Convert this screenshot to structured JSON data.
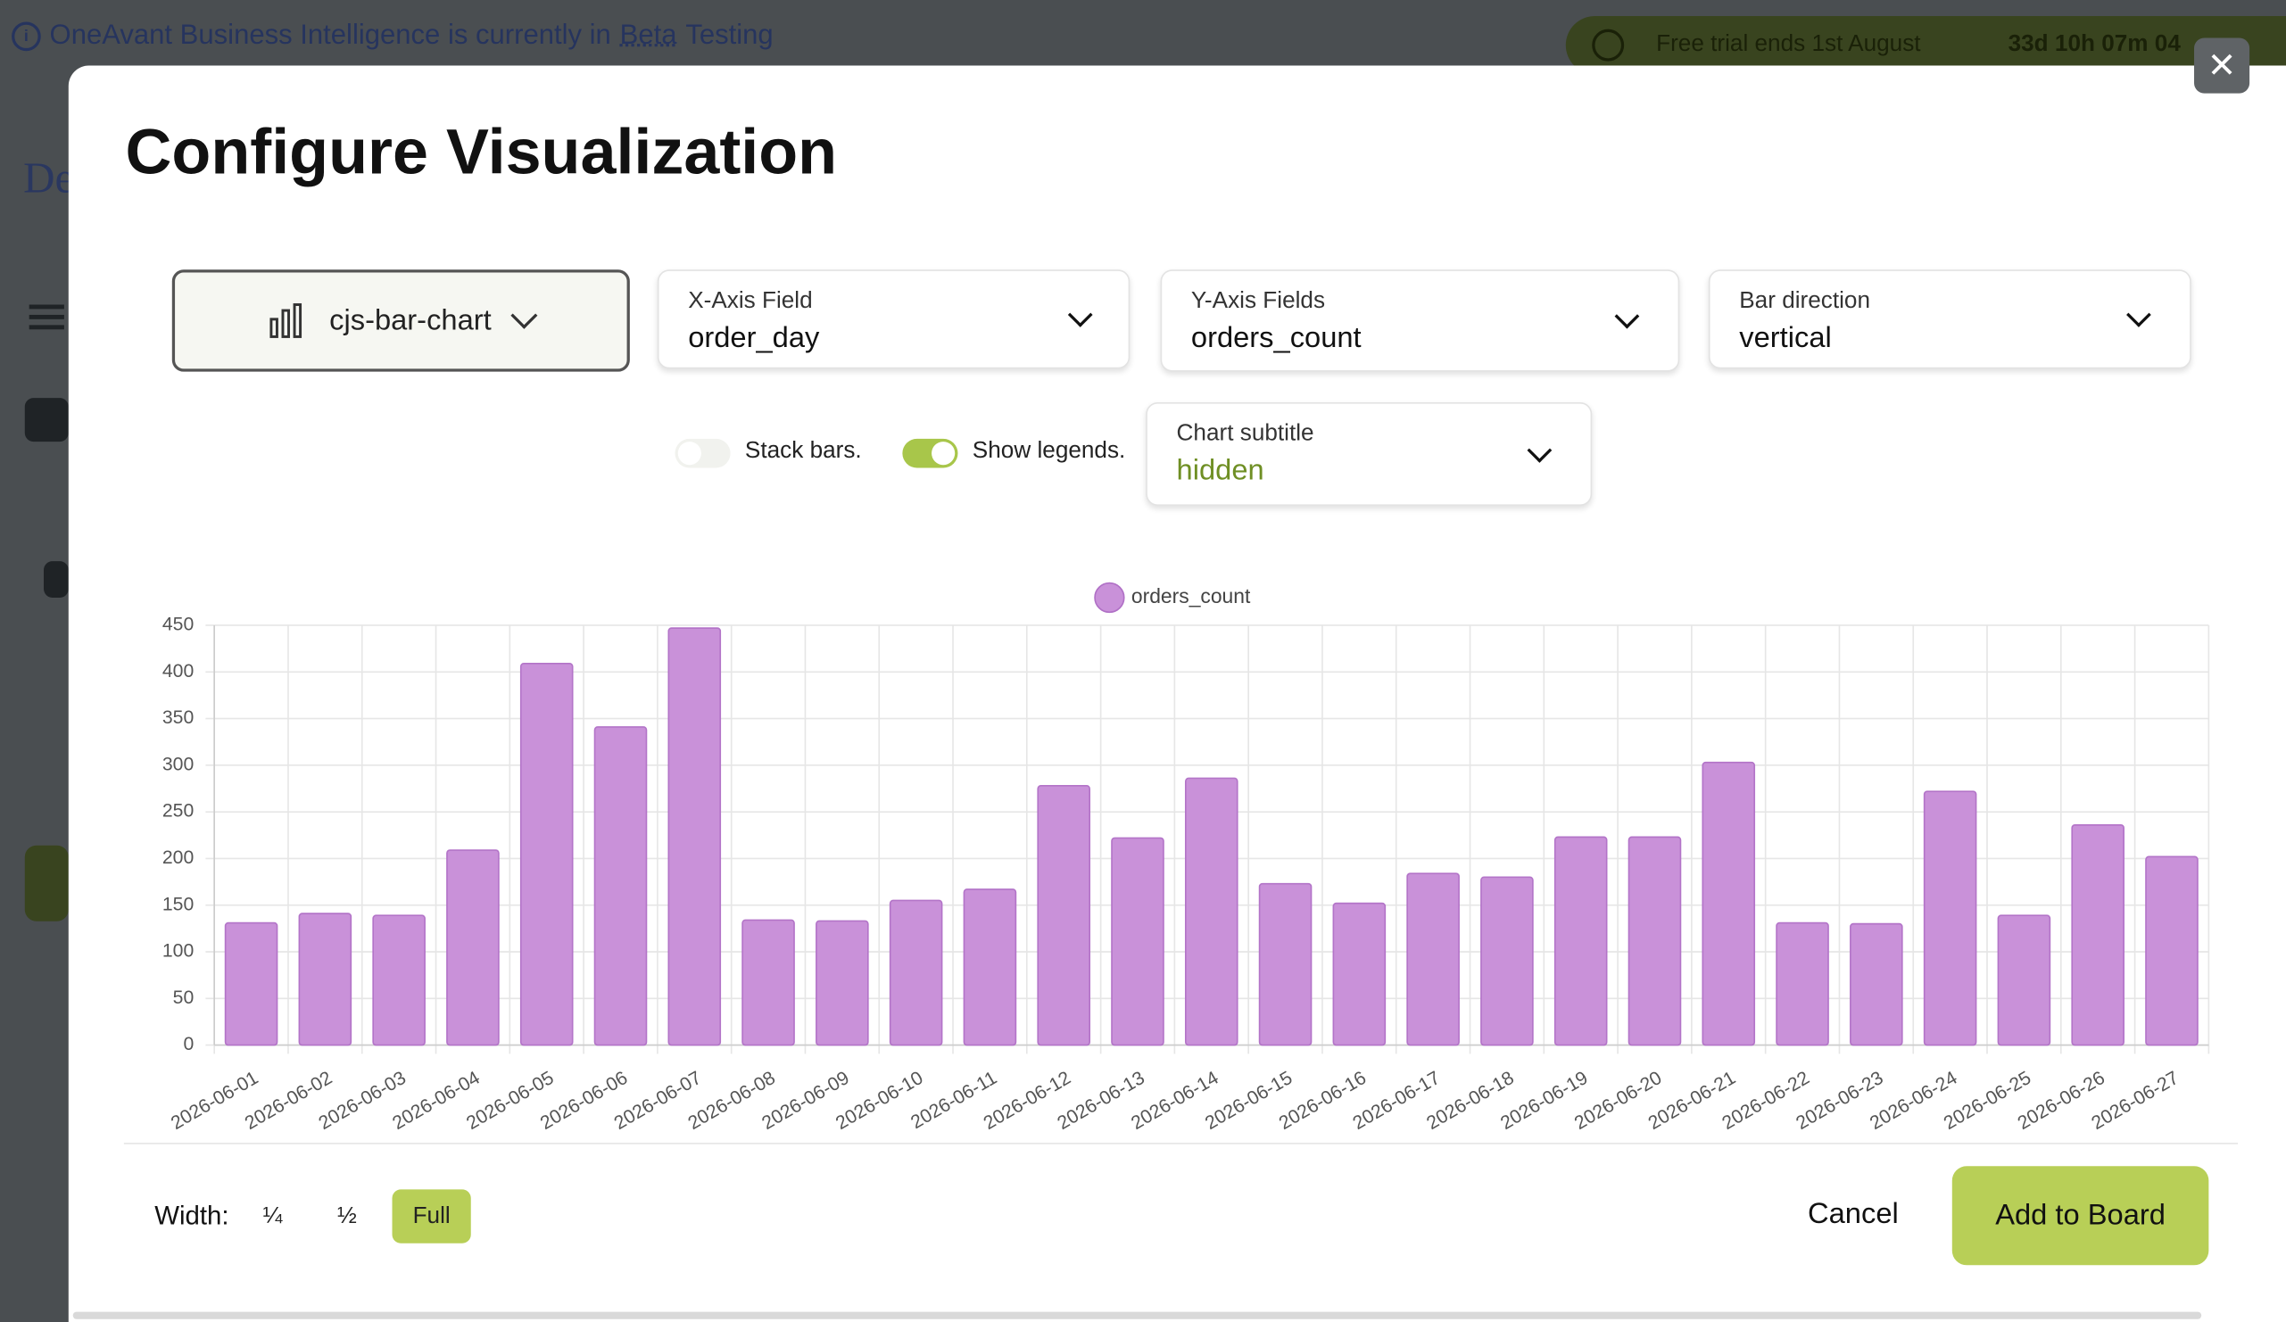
{
  "banner": {
    "prefix": "OneAvant Business Intelligence is currently in",
    "link": "Beta",
    "suffix": "Testing"
  },
  "trial": {
    "text": "Free trial ends 1st August",
    "countdown": "33d 10h 07m 04"
  },
  "sidebar": {
    "title": "De"
  },
  "modal": {
    "title": "Configure Visualization",
    "chart_type": "cjs-bar-chart",
    "fields": [
      {
        "label": "X-Axis Field",
        "value": "order_day"
      },
      {
        "label": "Y-Axis Fields",
        "value": "orders_count"
      },
      {
        "label": "Bar direction",
        "value": "vertical"
      }
    ],
    "toggles": [
      {
        "label": "Stack bars.",
        "on": false
      },
      {
        "label": "Show legends.",
        "on": true
      }
    ],
    "subtitle": {
      "label": "Chart subtitle",
      "value": "hidden"
    },
    "width": {
      "label": "Width:",
      "options": [
        "¼",
        "½",
        "Full"
      ],
      "selected": "Full"
    },
    "cancel": "Cancel",
    "submit": "Add to Board"
  },
  "chart_data": {
    "type": "bar",
    "categories": [
      "2026-06-01",
      "2026-06-02",
      "2026-06-03",
      "2026-06-04",
      "2026-06-05",
      "2026-06-06",
      "2026-06-07",
      "2026-06-08",
      "2026-06-09",
      "2026-06-10",
      "2026-06-11",
      "2026-06-12",
      "2026-06-13",
      "2026-06-14",
      "2026-06-15",
      "2026-06-16",
      "2026-06-17",
      "2026-06-18",
      "2026-06-19",
      "2026-06-20",
      "2026-06-21",
      "2026-06-22",
      "2026-06-23",
      "2026-06-24",
      "2026-06-25",
      "2026-06-26",
      "2026-06-27"
    ],
    "series": [
      {
        "name": "orders_count",
        "color": "#c991d9",
        "values": [
          131,
          141,
          139,
          209,
          409,
          341,
          447,
          134,
          133,
          155,
          167,
          278,
          222,
          286,
          173,
          152,
          184,
          180,
          223,
          223,
          303,
          131,
          130,
          272,
          139,
          236,
          202
        ]
      }
    ],
    "ylim": [
      0,
      450
    ],
    "yticks": [
      0,
      50,
      100,
      150,
      200,
      250,
      300,
      350,
      400,
      450
    ],
    "grid": true,
    "legend": "top"
  }
}
